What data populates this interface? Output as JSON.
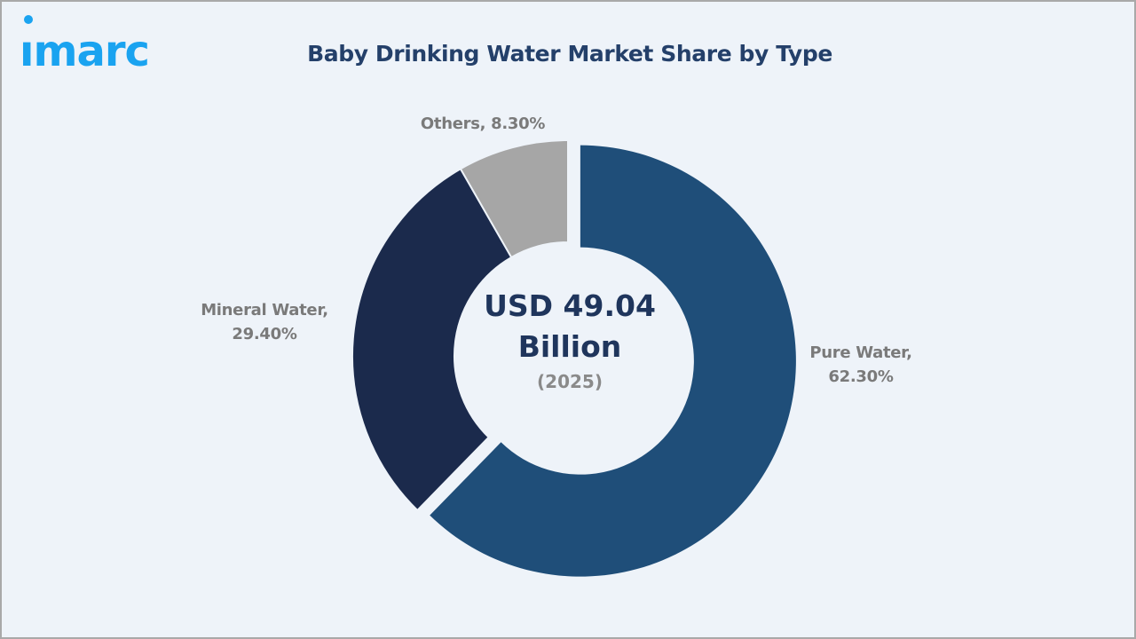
{
  "brand": {
    "logo_text": "imarc",
    "logo_color": "#1aa3f0"
  },
  "header": {
    "title": "Baby Drinking Water Market Share by Type"
  },
  "center": {
    "value": "USD 49.04",
    "unit": "Billion",
    "year": "(2025)"
  },
  "labels": {
    "pure": {
      "name": "Pure Water,",
      "pct": "62.30%"
    },
    "mineral": {
      "name": "Mineral Water,",
      "pct": "29.40%"
    },
    "others": {
      "text": "Others, 8.30%"
    }
  },
  "colors": {
    "pure": "#1f4e79",
    "mineral": "#1b2a4c",
    "others": "#a6a6a6",
    "background": "#eef3f9",
    "title": "#24406a",
    "label": "#7a7a7a"
  },
  "chart_data": {
    "type": "pie",
    "variant": "donut",
    "title": "Baby Drinking Water Market Share by Type",
    "categories": [
      "Pure Water",
      "Mineral Water",
      "Others"
    ],
    "values": [
      62.3,
      29.4,
      8.3
    ],
    "unit": "%",
    "center_annotation": "USD 49.04 Billion (2025)",
    "exploded": [
      "Pure Water"
    ],
    "legend": "none (data labels outside slices)"
  }
}
